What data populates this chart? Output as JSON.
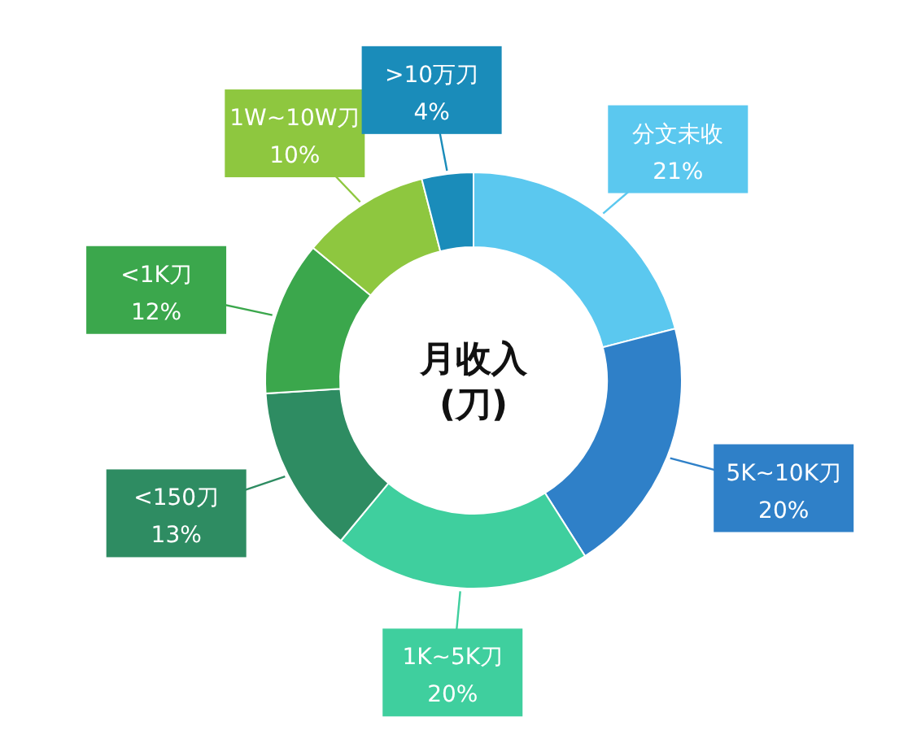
{
  "chart_data": {
    "type": "donut",
    "title": "月收入\n(刀)",
    "categories": [
      "分文未收",
      "5K~10K刀",
      "1K~5K刀",
      "<150刀",
      "<1K刀",
      "1W~10W刀",
      ">10万刀"
    ],
    "values": [
      21,
      20,
      20,
      13,
      12,
      10,
      4
    ],
    "colors": [
      "#5bc8ef",
      "#2f80c8",
      "#3fcf9e",
      "#2e8c62",
      "#3ba74c",
      "#8ec73f",
      "#1a8cba"
    ],
    "value_labels": [
      "21%",
      "20%",
      "20%",
      "13%",
      "12%",
      "10%",
      "4%"
    ]
  }
}
